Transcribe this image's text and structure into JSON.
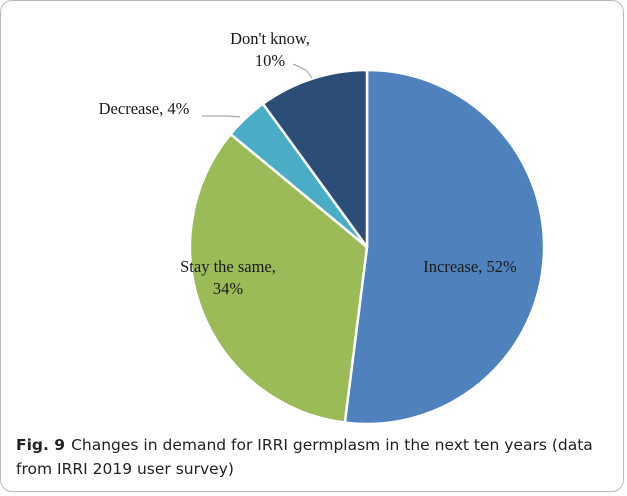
{
  "chart_data": {
    "type": "pie",
    "slices": [
      {
        "label_lines": [
          "Increase, 52%"
        ],
        "value": 52,
        "color": "#4f81bd"
      },
      {
        "label_lines": [
          "Stay the same,",
          "34%"
        ],
        "value": 34,
        "color": "#9bbb59"
      },
      {
        "label_lines": [
          "Decrease, 4%"
        ],
        "value": 4,
        "color": "#4bacc6"
      },
      {
        "label_lines": [
          "Don't know,",
          "10%"
        ],
        "value": 10,
        "color": "#2c4d75"
      }
    ],
    "start_angle_deg": 0,
    "direction": "clockwise",
    "legend": "none"
  },
  "caption": {
    "fig_label": "Fig. 9",
    "text": "Changes in demand for IRRI germplasm in the next ten years (data from IRRI 2019 user survey)"
  }
}
